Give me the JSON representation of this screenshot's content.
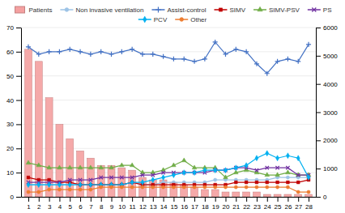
{
  "chart_data": {
    "type": "bar",
    "x": [
      1,
      2,
      3,
      4,
      5,
      6,
      7,
      8,
      9,
      10,
      11,
      12,
      13,
      14,
      15,
      16,
      17,
      18,
      19,
      20,
      21,
      22,
      23,
      24,
      25,
      26,
      27,
      28
    ],
    "xlim": [
      0.3,
      28.7
    ],
    "xticks": [
      1,
      2,
      3,
      4,
      5,
      6,
      7,
      8,
      9,
      10,
      11,
      12,
      13,
      14,
      15,
      16,
      17,
      18,
      19,
      20,
      21,
      22,
      23,
      24,
      25,
      26,
      27,
      28
    ],
    "ylim": [
      0,
      70
    ],
    "yticks": [
      0,
      10,
      20,
      30,
      40,
      50,
      60,
      70
    ],
    "y2lim": [
      0,
      6000
    ],
    "y2ticks": [
      0,
      1000,
      2000,
      3000,
      4000,
      5000,
      6000
    ],
    "grid": true,
    "legend": "top",
    "series": [
      {
        "name": "Patients",
        "type": "bar",
        "color": "#f4a0a0",
        "values": [
          61,
          56,
          41,
          30,
          24,
          19,
          16,
          13,
          13,
          12,
          11,
          8,
          7,
          7,
          6,
          5,
          4,
          3,
          3,
          2,
          2,
          2,
          2,
          1,
          1,
          1,
          1,
          1
        ]
      },
      {
        "name": "Non invasive ventilation",
        "type": "line",
        "color": "#9dc3e6",
        "marker": "circle",
        "values": [
          5,
          5,
          5,
          5,
          5,
          5,
          5,
          5,
          5,
          5,
          6,
          5,
          5,
          6,
          6,
          6,
          6,
          6,
          7,
          7,
          7,
          7,
          7,
          7,
          8,
          8,
          8,
          8
        ]
      },
      {
        "name": "Assist-control",
        "type": "line",
        "color": "#4472c4",
        "marker": "plus",
        "values": [
          62,
          59,
          60,
          60,
          61,
          60,
          59,
          60,
          59,
          60,
          61,
          59,
          59,
          58,
          57,
          57,
          56,
          57,
          64,
          59,
          61,
          60,
          55,
          51,
          56,
          57,
          56,
          63
        ]
      },
      {
        "name": "SIMV",
        "type": "line",
        "color": "#c00000",
        "marker": "square",
        "values": [
          8,
          7,
          7,
          6,
          6,
          5,
          5,
          5,
          5,
          5,
          6,
          5,
          5,
          5,
          5,
          5,
          5,
          5,
          5,
          5,
          6,
          6,
          6,
          6,
          6,
          6,
          6,
          7
        ]
      },
      {
        "name": "SIMV-PSV",
        "type": "line",
        "color": "#70ad47",
        "marker": "triangle",
        "values": [
          14,
          13,
          12,
          12,
          12,
          12,
          12,
          12,
          12,
          13,
          13,
          10,
          10,
          11,
          13,
          15,
          12,
          12,
          12,
          8,
          10,
          11,
          10,
          9,
          9,
          10,
          9,
          9
        ]
      },
      {
        "name": "PS",
        "type": "line",
        "color": "#7030a0",
        "marker": "x",
        "values": [
          6,
          6,
          6,
          6,
          7,
          7,
          7,
          8,
          8,
          8,
          8,
          9,
          9,
          10,
          10,
          10,
          10,
          10,
          11,
          11,
          12,
          12,
          11,
          12,
          12,
          12,
          9,
          9
        ]
      },
      {
        "name": "PCV",
        "type": "line",
        "color": "#00b0f0",
        "marker": "diamond",
        "values": [
          5,
          5,
          5,
          5,
          5,
          5,
          5,
          5,
          5,
          5,
          6,
          6,
          7,
          8,
          9,
          10,
          10,
          11,
          11,
          11,
          12,
          13,
          16,
          18,
          16,
          17,
          16,
          8
        ]
      },
      {
        "name": "Other",
        "type": "line",
        "color": "#ed7d31",
        "marker": "circle",
        "values": [
          2,
          2,
          3,
          3,
          3,
          3,
          3,
          4,
          4,
          4,
          4,
          4,
          4,
          4,
          4,
          4,
          4,
          4,
          4,
          4,
          4,
          4,
          4,
          4,
          4,
          4,
          2,
          2
        ]
      }
    ]
  }
}
